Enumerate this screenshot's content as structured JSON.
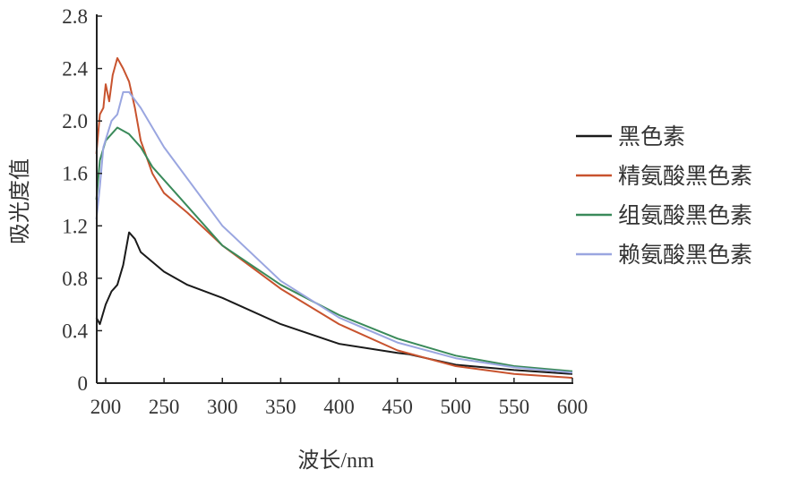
{
  "chart_data": {
    "type": "line",
    "title": "",
    "xlabel": "波长/nm",
    "ylabel": "吸光度值",
    "xlim": [
      190,
      600
    ],
    "ylim": [
      0,
      2.8
    ],
    "xticks": [
      200,
      250,
      300,
      350,
      400,
      450,
      500,
      550,
      600
    ],
    "yticks": [
      "0",
      "0.4",
      "0.8",
      "1.2",
      "1.6",
      "2.0",
      "2.4",
      "2.8"
    ],
    "grid": false,
    "legend_position": "right",
    "series": [
      {
        "name": "黑色素",
        "color": "#1a1a1a",
        "x": [
          192,
          195,
          200,
          205,
          210,
          215,
          220,
          225,
          230,
          250,
          270,
          300,
          350,
          400,
          450,
          460,
          500,
          550,
          600
        ],
        "y": [
          0.5,
          0.45,
          0.6,
          0.7,
          0.75,
          0.9,
          1.15,
          1.1,
          1.0,
          0.85,
          0.75,
          0.65,
          0.45,
          0.3,
          0.23,
          0.22,
          0.14,
          0.1,
          0.07
        ]
      },
      {
        "name": "精氨酸黑色素",
        "color": "#c8532e",
        "x": [
          192,
          195,
          198,
          200,
          203,
          206,
          210,
          215,
          220,
          225,
          230,
          240,
          250,
          270,
          300,
          350,
          400,
          450,
          500,
          550,
          600
        ],
        "y": [
          1.75,
          2.05,
          2.1,
          2.28,
          2.15,
          2.35,
          2.48,
          2.4,
          2.3,
          2.1,
          1.85,
          1.6,
          1.45,
          1.3,
          1.05,
          0.72,
          0.45,
          0.25,
          0.13,
          0.07,
          0.04
        ]
      },
      {
        "name": "组氨酸黑色素",
        "color": "#3a8a5a",
        "x": [
          192,
          195,
          200,
          210,
          220,
          230,
          240,
          260,
          300,
          350,
          400,
          450,
          500,
          550,
          600
        ],
        "y": [
          1.4,
          1.7,
          1.85,
          1.95,
          1.9,
          1.8,
          1.65,
          1.45,
          1.05,
          0.75,
          0.52,
          0.34,
          0.21,
          0.13,
          0.09
        ]
      },
      {
        "name": "赖氨酸黑色素",
        "color": "#9aa6e0",
        "x": [
          192,
          195,
          198,
          205,
          210,
          215,
          220,
          230,
          250,
          300,
          350,
          400,
          450,
          500,
          550,
          600
        ],
        "y": [
          1.25,
          1.5,
          1.8,
          2.0,
          2.05,
          2.22,
          2.22,
          2.1,
          1.8,
          1.2,
          0.78,
          0.5,
          0.31,
          0.19,
          0.12,
          0.08
        ]
      }
    ]
  }
}
